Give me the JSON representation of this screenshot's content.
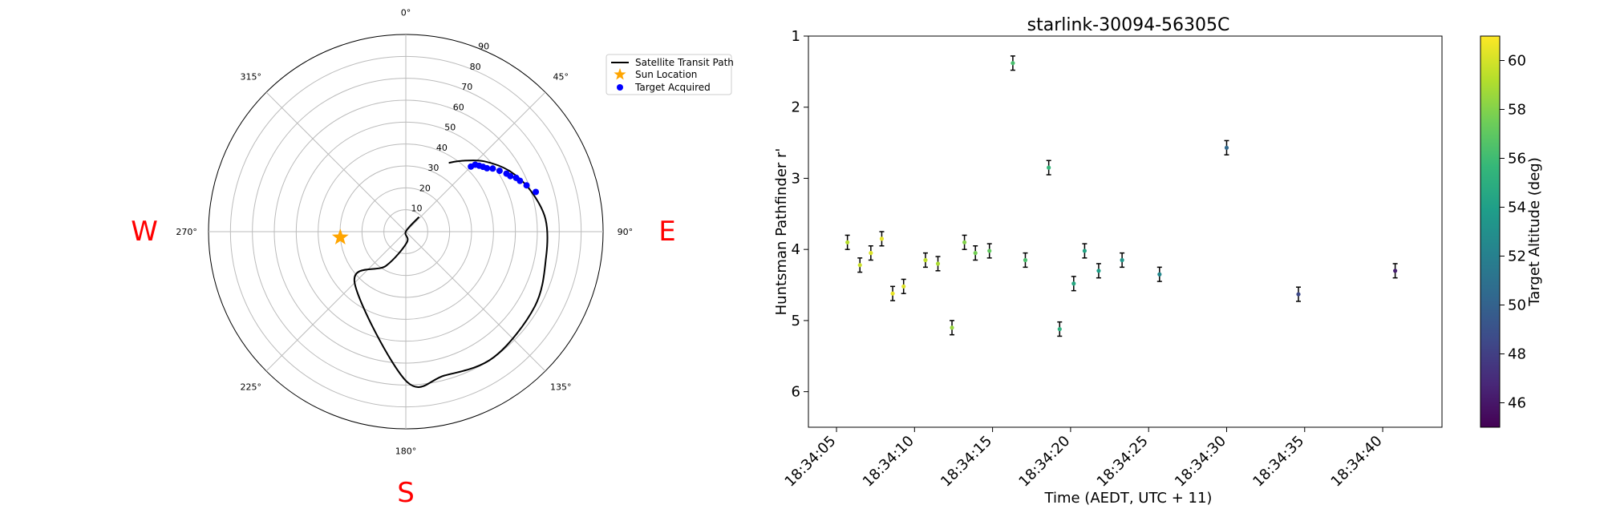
{
  "compass": {
    "west": "W",
    "east": "E",
    "south": "S"
  },
  "polar": {
    "azimuth_ticks": [
      {
        "deg": 0,
        "label": "0°"
      },
      {
        "deg": 45,
        "label": "45°"
      },
      {
        "deg": 90,
        "label": "90°"
      },
      {
        "deg": 135,
        "label": "135°"
      },
      {
        "deg": 180,
        "label": "180°"
      },
      {
        "deg": 225,
        "label": "225°"
      },
      {
        "deg": 270,
        "label": "270°"
      },
      {
        "deg": 315,
        "label": "315°"
      }
    ],
    "radial_ticks": [
      "10",
      "20",
      "30",
      "40",
      "50",
      "60",
      "70",
      "80",
      "90"
    ],
    "radial_values": [
      10,
      20,
      30,
      40,
      50,
      60,
      70,
      80,
      90
    ],
    "r_max": 90,
    "label_position_deg": 22.5,
    "legend": {
      "path": "Satellite Transit Path",
      "sun": "Sun Location",
      "target": "Target Acquired"
    },
    "colors": {
      "path": "#000000",
      "sun": "#ffa500",
      "target": "#0000ff",
      "grid": "#bbbbbb"
    },
    "sun": {
      "az": 265,
      "zd": 30
    },
    "transit_path": [
      [
        42,
        9
      ],
      [
        90,
        0
      ],
      [
        175,
        5
      ],
      [
        210,
        18
      ],
      [
        225,
        33
      ],
      [
        180,
        68
      ],
      [
        165,
        68
      ],
      [
        145,
        70
      ],
      [
        120,
        68
      ],
      [
        100,
        65
      ],
      [
        85,
        64
      ],
      [
        72,
        60
      ],
      [
        60,
        55
      ],
      [
        48,
        48
      ],
      [
        38,
        41
      ],
      [
        32,
        37
      ]
    ],
    "targets": [
      [
        45,
        42
      ],
      [
        46,
        44
      ],
      [
        48,
        45
      ],
      [
        50,
        46
      ],
      [
        52,
        47
      ],
      [
        54,
        49
      ],
      [
        57,
        51
      ],
      [
        60,
        53
      ],
      [
        62,
        54
      ],
      [
        64,
        56
      ],
      [
        66,
        57
      ],
      [
        69,
        59
      ],
      [
        73,
        62
      ]
    ]
  },
  "chart_data": {
    "type": "scatter",
    "title": "starlink-30094-56305C",
    "xlabel": "Time (AEDT, UTC + 11)",
    "ylabel": "Huntsman Pathfinder r'",
    "ylim": [
      6.5,
      1
    ],
    "y_inverted": true,
    "y_ticks": [
      1,
      2,
      3,
      4,
      5,
      6
    ],
    "x_ticks": [
      "18:34:05",
      "18:34:10",
      "18:34:15",
      "18:34:20",
      "18:34:25",
      "18:34:30",
      "18:34:35",
      "18:34:40"
    ],
    "xlim_seconds_after_18_34_00": [
      3.2,
      43.8
    ],
    "colorbar": {
      "label": "Target Altitude (deg)",
      "range": [
        45,
        61
      ],
      "ticks": [
        "46",
        "48",
        "50",
        "52",
        "54",
        "56",
        "58",
        "60"
      ],
      "colormap": "viridis"
    },
    "points": [
      {
        "t": 5.7,
        "mag": 3.9,
        "err": 0.1,
        "alt": 59.3
      },
      {
        "t": 6.5,
        "mag": 4.22,
        "err": 0.1,
        "alt": 59.8
      },
      {
        "t": 7.2,
        "mag": 4.05,
        "err": 0.1,
        "alt": 60.2
      },
      {
        "t": 7.9,
        "mag": 3.85,
        "err": 0.1,
        "alt": 60.5
      },
      {
        "t": 8.6,
        "mag": 4.62,
        "err": 0.1,
        "alt": 60.5
      },
      {
        "t": 9.3,
        "mag": 4.52,
        "err": 0.1,
        "alt": 60.3
      },
      {
        "t": 10.7,
        "mag": 4.15,
        "err": 0.1,
        "alt": 59.5
      },
      {
        "t": 11.5,
        "mag": 4.2,
        "err": 0.1,
        "alt": 59.0
      },
      {
        "t": 12.4,
        "mag": 5.1,
        "err": 0.1,
        "alt": 58.5
      },
      {
        "t": 13.2,
        "mag": 3.9,
        "err": 0.1,
        "alt": 58.0
      },
      {
        "t": 13.9,
        "mag": 4.05,
        "err": 0.1,
        "alt": 57.6
      },
      {
        "t": 14.8,
        "mag": 4.02,
        "err": 0.1,
        "alt": 57.1
      },
      {
        "t": 16.3,
        "mag": 1.38,
        "err": 0.1,
        "alt": 56.3
      },
      {
        "t": 17.1,
        "mag": 4.15,
        "err": 0.1,
        "alt": 56.4
      },
      {
        "t": 18.6,
        "mag": 2.85,
        "err": 0.1,
        "alt": 55.6
      },
      {
        "t": 19.3,
        "mag": 5.12,
        "err": 0.1,
        "alt": 55.1
      },
      {
        "t": 20.2,
        "mag": 4.48,
        "err": 0.1,
        "alt": 54.6
      },
      {
        "t": 20.9,
        "mag": 4.02,
        "err": 0.1,
        "alt": 54.3
      },
      {
        "t": 21.8,
        "mag": 4.3,
        "err": 0.1,
        "alt": 54.0
      },
      {
        "t": 23.3,
        "mag": 4.15,
        "err": 0.1,
        "alt": 53.4
      },
      {
        "t": 25.7,
        "mag": 4.35,
        "err": 0.1,
        "alt": 52.4
      },
      {
        "t": 30.0,
        "mag": 2.57,
        "err": 0.1,
        "alt": 50.4
      },
      {
        "t": 34.6,
        "mag": 4.63,
        "err": 0.1,
        "alt": 48.5
      },
      {
        "t": 40.8,
        "mag": 4.3,
        "err": 0.1,
        "alt": 46.4
      }
    ]
  }
}
